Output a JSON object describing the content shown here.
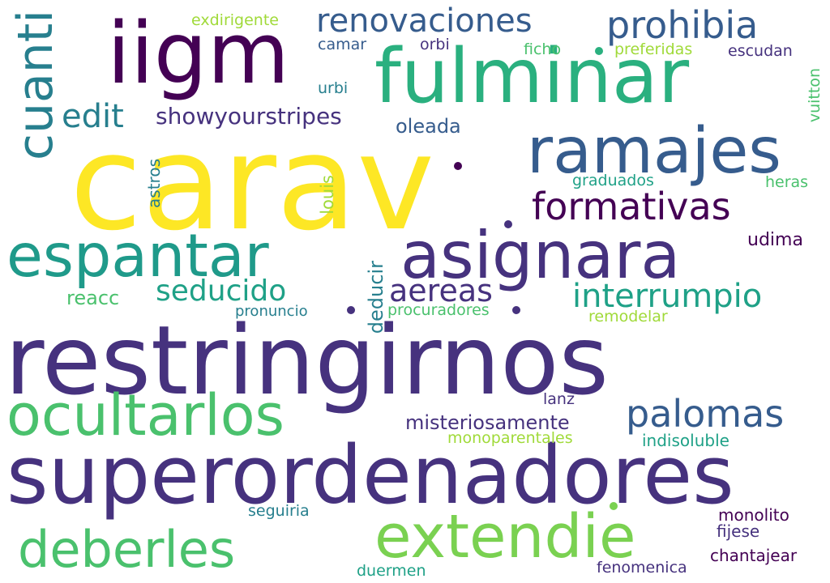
{
  "colors": {
    "background": "#ffffff",
    "yellow": "#fde725",
    "lime": "#a0da39",
    "lightgreen": "#7ad151",
    "green": "#4ac16d",
    "teal": "#1fa187",
    "tealblue": "#277f8e",
    "blue": "#365c8d",
    "indigo": "#46327e",
    "purple": "#440154"
  },
  "words": [
    "carav",
    "restringirnos",
    "superordenadores",
    "fulminar",
    "iigm",
    "asignara",
    "ramajes",
    "espantar",
    "ocultarlos",
    "extendie",
    "deberles",
    "cuanti",
    "prohibia",
    "renovaciones",
    "palomas",
    "formativas",
    "edit",
    "interrumpio",
    "showyourstripes",
    "seducido",
    "aereas",
    "misteriosamente",
    "oleada",
    "deducir",
    "udima",
    "exdirigente",
    "camar",
    "orbi",
    "ficho",
    "preferidas",
    "escudan",
    "urbi",
    "vuitton",
    "graduados",
    "heras",
    "louis",
    "astros",
    "reacc",
    "pronuncio",
    "procuradores",
    "remodelar",
    "lanz",
    "monoparentales",
    "indisoluble",
    "seguiria",
    "monolito",
    "fijese",
    "chantajear",
    "duermen",
    "fenomenica"
  ]
}
